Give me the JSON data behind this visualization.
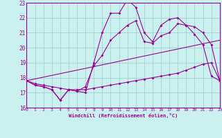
{
  "x_hours": [
    0,
    1,
    2,
    3,
    4,
    5,
    6,
    7,
    8,
    9,
    10,
    11,
    12,
    13,
    14,
    15,
    16,
    17,
    18,
    19,
    20,
    21,
    22,
    23
  ],
  "line1": [
    17.8,
    17.5,
    17.4,
    17.2,
    16.5,
    17.2,
    17.1,
    17.0,
    19.0,
    21.0,
    22.3,
    22.3,
    23.2,
    22.7,
    21.0,
    20.4,
    21.5,
    21.9,
    22.0,
    21.5,
    20.9,
    20.2,
    18.1,
    17.8
  ],
  "line2": [
    17.8,
    17.5,
    17.4,
    17.2,
    16.5,
    17.2,
    17.1,
    17.4,
    18.8,
    19.5,
    20.5,
    21.0,
    21.5,
    21.8,
    20.4,
    20.3,
    20.8,
    21.0,
    21.6,
    21.5,
    21.4,
    21.0,
    20.2,
    17.8
  ],
  "line3": [
    17.8,
    17.6,
    17.5,
    17.4,
    17.3,
    17.2,
    17.2,
    17.2,
    17.3,
    17.4,
    17.5,
    17.6,
    17.7,
    17.8,
    17.9,
    18.0,
    18.1,
    18.2,
    18.3,
    18.5,
    18.7,
    18.9,
    19.0,
    17.8
  ],
  "trend_x": [
    0,
    23
  ],
  "trend_y": [
    17.8,
    20.5
  ],
  "bg_color": "#caf0f0",
  "line_color": "#990099",
  "grid_color": "#99cccc",
  "xlabel": "Windchill (Refroidissement éolien,°C)",
  "xlim": [
    0,
    23
  ],
  "ylim": [
    16,
    23
  ],
  "yticks": [
    16,
    17,
    18,
    19,
    20,
    21,
    22,
    23
  ],
  "xticks": [
    0,
    1,
    2,
    3,
    4,
    5,
    6,
    7,
    8,
    9,
    10,
    11,
    12,
    13,
    14,
    15,
    16,
    17,
    18,
    19,
    20,
    21,
    22,
    23
  ],
  "font_color": "#990099",
  "marker_size": 2.0,
  "line_width": 0.8
}
